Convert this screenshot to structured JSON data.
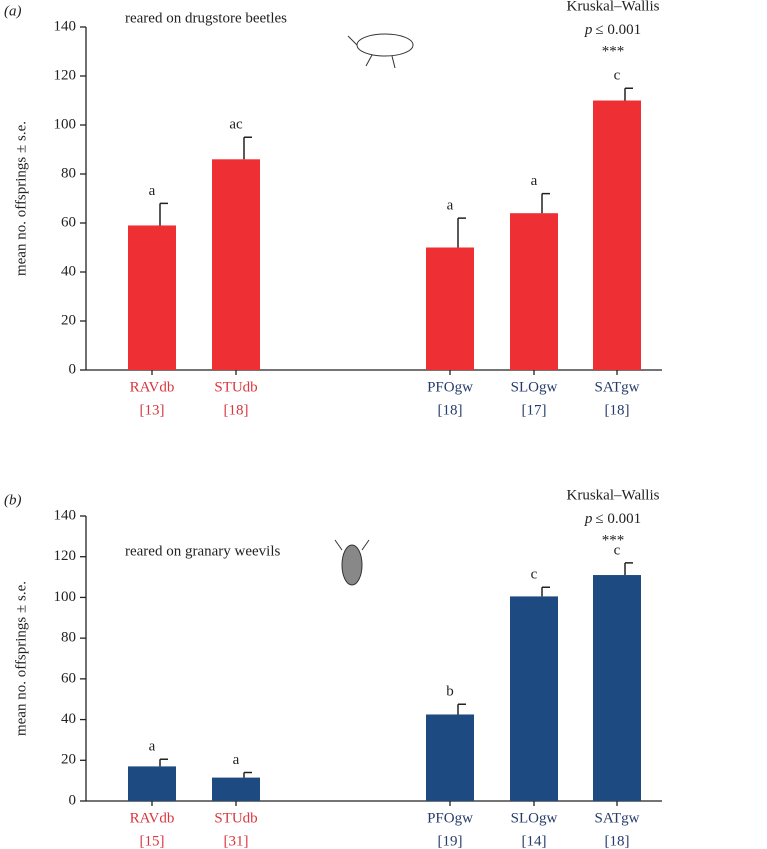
{
  "chart_data": [
    {
      "type": "bar",
      "panel_label": "(a)",
      "ylabel": "mean no. offsprings ± s.e.",
      "note": "reared on drugstore beetles",
      "test": "Kruskal–Wallis",
      "p_symbol": "p",
      "p_text": "≤ 0.001",
      "stars": "***",
      "categories": [
        "RAVdb",
        "STUdb",
        "PFOgw",
        "SLOgw",
        "SATgw"
      ],
      "sample_sizes": [
        "[13]",
        "[18]",
        "[18]",
        "[17]",
        "[18]"
      ],
      "category_colors": [
        "#d9363e",
        "#d9363e",
        "#253c6b",
        "#253c6b",
        "#253c6b"
      ],
      "values": [
        59,
        86,
        50,
        64,
        110
      ],
      "errors": [
        9,
        9,
        12,
        8,
        5
      ],
      "group_letters": [
        "a",
        "ac",
        "a",
        "a",
        "c"
      ],
      "color": "#ee3035",
      "ylim": [
        0,
        140
      ],
      "yticks": [
        0,
        20,
        40,
        60,
        80,
        100,
        120,
        140
      ]
    },
    {
      "type": "bar",
      "panel_label": "(b)",
      "ylabel": "mean no. offsprings ± s.e.",
      "note": "reared on granary weevils",
      "test": "Kruskal–Wallis",
      "p_symbol": "p",
      "p_text": "≤ 0.001",
      "stars": "***",
      "categories": [
        "RAVdb",
        "STUdb",
        "PFOgw",
        "SLOgw",
        "SATgw"
      ],
      "sample_sizes": [
        "[15]",
        "[31]",
        "[19]",
        "[14]",
        "[18]"
      ],
      "category_colors": [
        "#d9363e",
        "#d9363e",
        "#253c6b",
        "#253c6b",
        "#253c6b"
      ],
      "values": [
        17,
        11.5,
        42.5,
        100.5,
        111
      ],
      "errors": [
        3.5,
        2.5,
        5,
        4.5,
        6
      ],
      "group_letters": [
        "a",
        "a",
        "b",
        "c",
        "c"
      ],
      "color": "#1d4a80",
      "ylim": [
        0,
        140
      ],
      "yticks": [
        0,
        20,
        40,
        60,
        80,
        100,
        120,
        140
      ]
    }
  ]
}
